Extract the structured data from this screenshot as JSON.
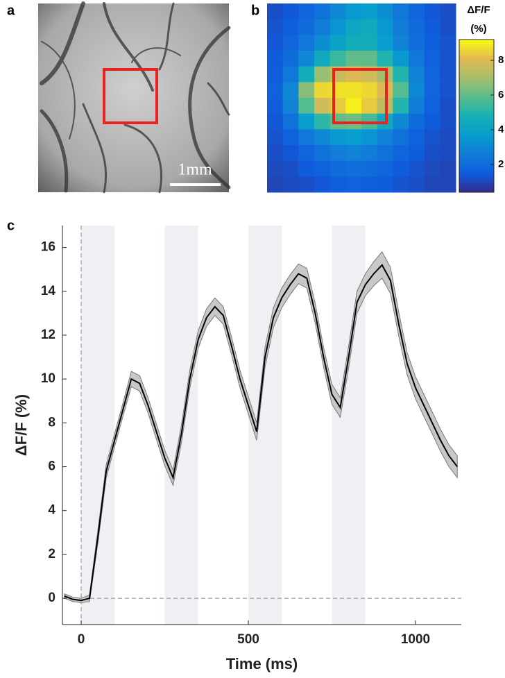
{
  "chart_data": [
    {
      "type": "image",
      "panel": "a",
      "scale_bar": "1mm"
    },
    {
      "type": "heatmap",
      "panel": "b",
      "colorbar_title": "ΔF/F",
      "colorbar_unit": "(%)",
      "colormap": "parula",
      "clim": [
        0.4,
        9.2
      ],
      "cticks": [
        2,
        4,
        6,
        8
      ],
      "values": [
        [
          1.2,
          1.4,
          1.8,
          2.2,
          3,
          3.6,
          3.8,
          3.2,
          2.4,
          1.8,
          1.4,
          1.2
        ],
        [
          1.3,
          1.6,
          2,
          2.6,
          3.4,
          4.2,
          4.4,
          3.6,
          2.6,
          2,
          1.5,
          1.2
        ],
        [
          1.4,
          1.8,
          2.4,
          3.2,
          4,
          4.6,
          4.6,
          3.8,
          2.8,
          2.1,
          1.6,
          1.3
        ],
        [
          1.5,
          2,
          3,
          4.4,
          5.4,
          6,
          6,
          5,
          3.6,
          2.4,
          1.7,
          1.3
        ],
        [
          1.6,
          2.4,
          4.6,
          6.8,
          7.6,
          8,
          7.8,
          7,
          5,
          2.8,
          1.8,
          1.3
        ],
        [
          1.7,
          3,
          6.6,
          8.6,
          8.8,
          8.8,
          8.6,
          8,
          5.8,
          3,
          1.8,
          1.3
        ],
        [
          1.6,
          2.8,
          5.8,
          7.8,
          8.4,
          9,
          8.4,
          7.4,
          5,
          2.6,
          1.7,
          1.2
        ],
        [
          1.4,
          2.2,
          3.8,
          5.2,
          6,
          6.2,
          5.6,
          4.4,
          3,
          2,
          1.5,
          1.2
        ],
        [
          1.3,
          1.7,
          2.4,
          3,
          3.6,
          3.8,
          3.4,
          2.8,
          2.2,
          1.7,
          1.3,
          1.1
        ],
        [
          1.2,
          1.4,
          1.8,
          2.2,
          2.6,
          2.8,
          2.6,
          2.2,
          1.8,
          1.5,
          1.2,
          1.1
        ],
        [
          1.1,
          1.2,
          1.5,
          1.7,
          2,
          2.1,
          2,
          1.8,
          1.5,
          1.3,
          1.1,
          1
        ],
        [
          1,
          1.1,
          1.2,
          1.4,
          1.6,
          1.7,
          1.6,
          1.5,
          1.3,
          1.2,
          1,
          1
        ]
      ]
    },
    {
      "type": "line",
      "panel": "c",
      "xlabel": "Time (ms)",
      "ylabel": "ΔF/F (%)",
      "xlim": [
        -56,
        1137
      ],
      "ylim": [
        -1.2,
        17
      ],
      "xticks": [
        0,
        500,
        1000
      ],
      "yticks": [
        0,
        2,
        4,
        6,
        8,
        10,
        12,
        14,
        16
      ],
      "vline": 0,
      "hline": 0,
      "stimuli": [
        [
          0,
          100
        ],
        [
          250,
          350
        ],
        [
          500,
          600
        ],
        [
          750,
          850
        ]
      ],
      "x": [
        -50,
        -25,
        0,
        25,
        50,
        75,
        100,
        125,
        150,
        175,
        200,
        225,
        250,
        275,
        300,
        325,
        350,
        375,
        400,
        425,
        450,
        475,
        500,
        525,
        550,
        575,
        600,
        625,
        650,
        675,
        700,
        725,
        750,
        775,
        800,
        825,
        850,
        875,
        900,
        925,
        950,
        975,
        1000,
        1025,
        1050,
        1075,
        1100,
        1125
      ],
      "series": [
        {
          "color": "#000000",
          "values": [
            0.1,
            -0.05,
            -0.1,
            0,
            2.8,
            5.8,
            7.2,
            8.6,
            10,
            9.8,
            8.8,
            7.6,
            6.4,
            5.5,
            7.5,
            10,
            11.8,
            12.8,
            13.3,
            12.9,
            11.5,
            10,
            8.8,
            7.6,
            11,
            12.8,
            13.7,
            14.3,
            14.8,
            14.6,
            13,
            11,
            9.3,
            8.7,
            11,
            13.5,
            14.3,
            14.8,
            15.2,
            14.5,
            12.5,
            10.7,
            9.6,
            8.8,
            8,
            7.2,
            6.5,
            6
          ],
          "error": [
            0.1,
            0.1,
            0.1,
            0.15,
            0.3,
            0.3,
            0.3,
            0.3,
            0.35,
            0.35,
            0.35,
            0.35,
            0.35,
            0.35,
            0.4,
            0.4,
            0.4,
            0.4,
            0.4,
            0.4,
            0.4,
            0.4,
            0.4,
            0.4,
            0.45,
            0.45,
            0.45,
            0.45,
            0.45,
            0.45,
            0.45,
            0.45,
            0.45,
            0.45,
            0.5,
            0.5,
            0.5,
            0.55,
            0.6,
            0.6,
            0.55,
            0.5,
            0.5,
            0.5,
            0.5,
            0.5,
            0.5,
            0.5
          ]
        }
      ]
    }
  ]
}
